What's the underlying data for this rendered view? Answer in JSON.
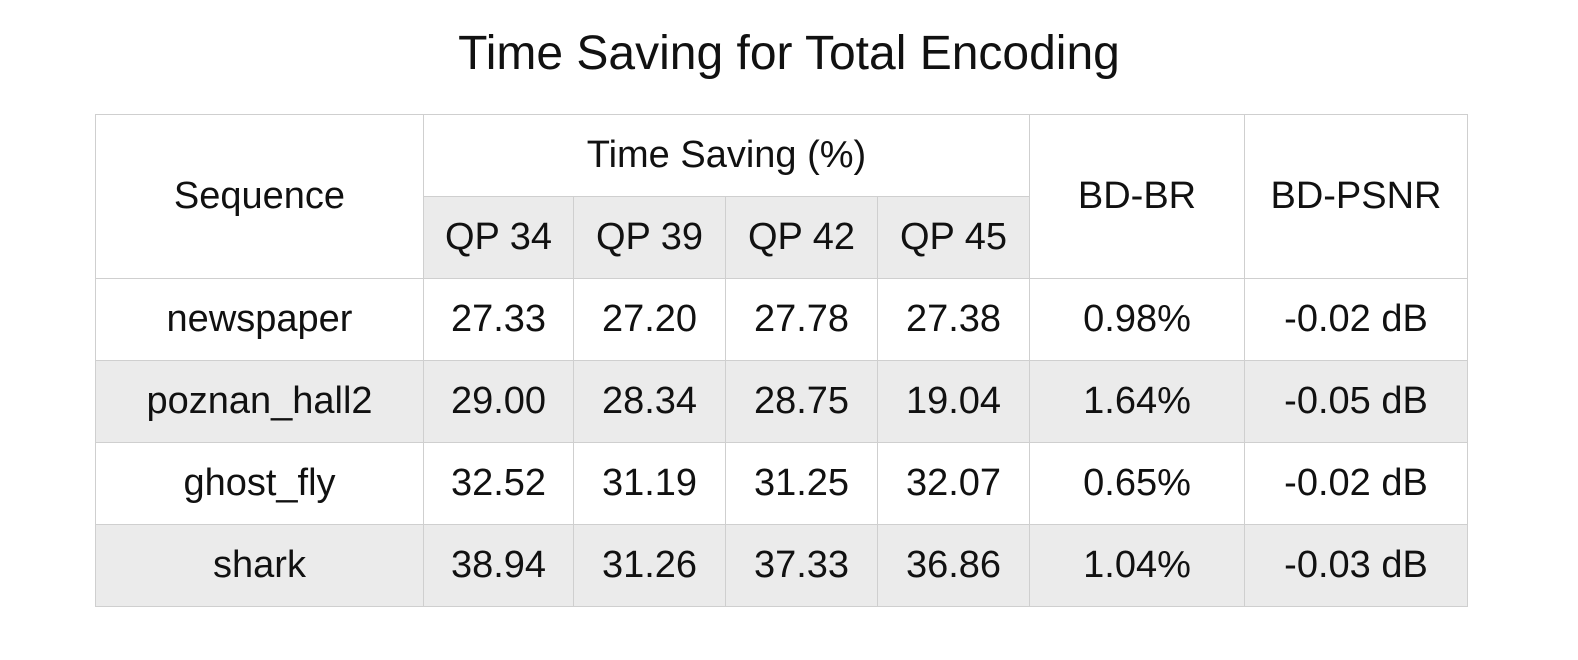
{
  "title": "Time Saving for Total Encoding",
  "colors": {
    "shade": "#ebebeb",
    "border": "#cfcfcf",
    "text": "#111111"
  },
  "chart_data": {
    "type": "table",
    "title": "Time Saving for Total Encoding",
    "header": {
      "sequence": "Sequence",
      "group": "Time Saving (%)",
      "qp": [
        "QP 34",
        "QP 39",
        "QP 42",
        "QP 45"
      ],
      "bdbr": "BD-BR",
      "bdpsnr": "BD-PSNR"
    },
    "rows": [
      {
        "sequence": "newspaper",
        "values": [
          "27.33",
          "27.20",
          "27.78",
          "27.38"
        ],
        "bdbr": "0.98%",
        "bdpsnr": "-0.02 dB"
      },
      {
        "sequence": "poznan_hall2",
        "values": [
          "29.00",
          "28.34",
          "28.75",
          "19.04"
        ],
        "bdbr": "1.64%",
        "bdpsnr": "-0.05 dB"
      },
      {
        "sequence": "ghost_fly",
        "values": [
          "32.52",
          "31.19",
          "31.25",
          "32.07"
        ],
        "bdbr": "0.65%",
        "bdpsnr": "-0.02 dB"
      },
      {
        "sequence": "shark",
        "values": [
          "38.94",
          "31.26",
          "37.33",
          "36.86"
        ],
        "bdbr": "1.04%",
        "bdpsnr": "-0.03 dB"
      }
    ]
  }
}
